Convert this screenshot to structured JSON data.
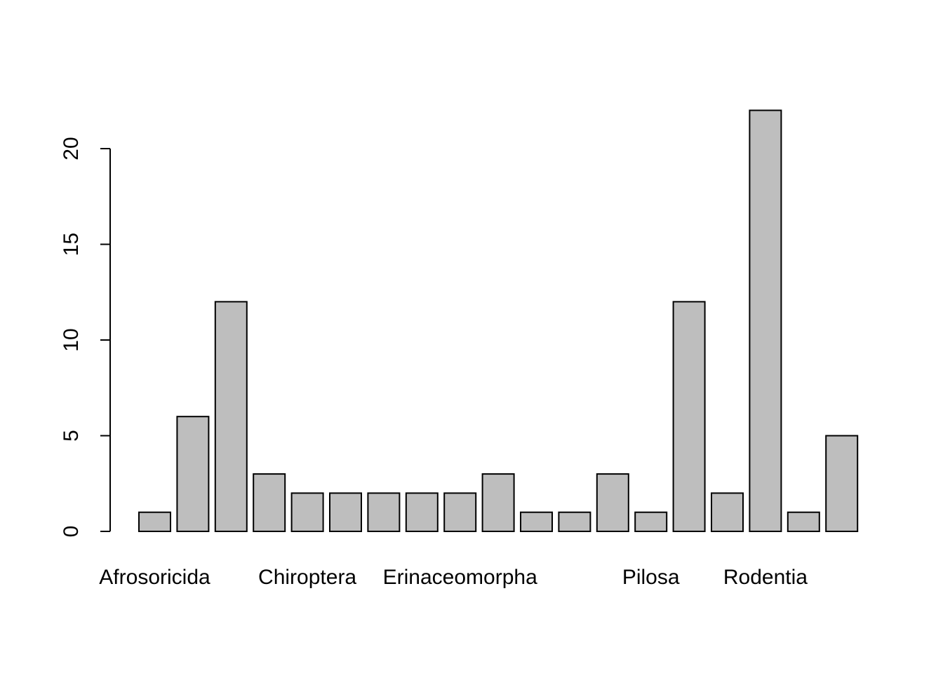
{
  "chart_data": {
    "type": "bar",
    "categories": [
      "Afrosoricida",
      "",
      "",
      "",
      "Chiroptera",
      "",
      "",
      "",
      "Erinaceomorpha",
      "",
      "",
      "",
      "",
      "Pilosa",
      "",
      "",
      "Rodentia",
      "",
      ""
    ],
    "values": [
      1,
      6,
      12,
      3,
      2,
      2,
      2,
      2,
      2,
      3,
      1,
      1,
      3,
      1,
      12,
      2,
      22,
      1,
      5
    ],
    "ylim": [
      0,
      22
    ],
    "yticks": [
      0,
      5,
      10,
      15,
      20
    ],
    "title": "",
    "xlabel": "",
    "ylabel": "",
    "bar_color": "#bebebe",
    "border_color": "#000000",
    "grid": false,
    "legend": "none"
  }
}
